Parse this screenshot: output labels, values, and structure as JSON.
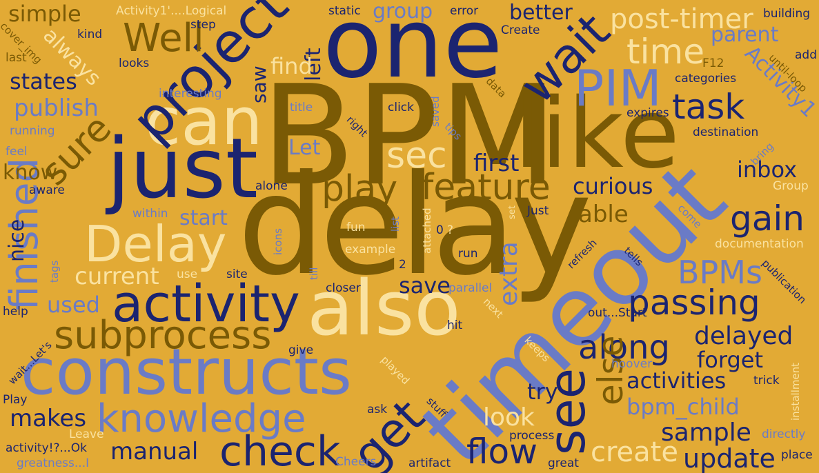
{
  "palette": {
    "background": "#e2aa35",
    "gold": "#7a5a05",
    "navy": "#1b2470",
    "blue": "#6a7bc6",
    "cream": "#fae2a0"
  },
  "words": [
    {
      "text": "BPM",
      "color": "gold"
    },
    {
      "text": "delay",
      "color": "gold"
    },
    {
      "text": "one",
      "color": "navy"
    },
    {
      "text": "timeout",
      "color": "blue"
    },
    {
      "text": "like",
      "color": "gold"
    },
    {
      "text": "just",
      "color": "navy"
    },
    {
      "text": "also",
      "color": "cream"
    },
    {
      "text": "constructs",
      "color": "blue"
    },
    {
      "text": "can",
      "color": "cream"
    },
    {
      "text": "project",
      "color": "navy"
    },
    {
      "text": "activity",
      "color": "navy"
    },
    {
      "text": "Delay",
      "color": "cream"
    },
    {
      "text": "subprocess",
      "color": "gold"
    },
    {
      "text": "knowledge",
      "color": "blue"
    },
    {
      "text": "check",
      "color": "navy"
    },
    {
      "text": "get",
      "color": "navy"
    },
    {
      "text": "see",
      "color": "navy"
    },
    {
      "text": "wait",
      "color": "navy"
    },
    {
      "text": "PIM",
      "color": "blue"
    },
    {
      "text": "feature",
      "color": "gold"
    },
    {
      "text": "play",
      "color": "gold"
    },
    {
      "text": "sec",
      "color": "cream"
    },
    {
      "text": "Well",
      "color": "gold"
    },
    {
      "text": "sure",
      "color": "gold"
    },
    {
      "text": "finished",
      "color": "blue"
    },
    {
      "text": "task",
      "color": "navy"
    },
    {
      "text": "time",
      "color": "cream"
    },
    {
      "text": "post-timer",
      "color": "cream"
    },
    {
      "text": "passing",
      "color": "navy"
    },
    {
      "text": "along",
      "color": "navy"
    },
    {
      "text": "else",
      "color": "gold"
    },
    {
      "text": "BPMs",
      "color": "blue"
    },
    {
      "text": "gain",
      "color": "navy"
    },
    {
      "text": "flow",
      "color": "navy"
    },
    {
      "text": "create",
      "color": "cream"
    },
    {
      "text": "update",
      "color": "navy"
    },
    {
      "text": "sample",
      "color": "navy"
    },
    {
      "text": "activities",
      "color": "navy"
    },
    {
      "text": "delayed",
      "color": "navy"
    },
    {
      "text": "forget",
      "color": "navy"
    },
    {
      "text": "bpm_child",
      "color": "blue"
    },
    {
      "text": "curious",
      "color": "navy"
    },
    {
      "text": "first",
      "color": "navy"
    },
    {
      "text": "inbox",
      "color": "navy"
    },
    {
      "text": "parent",
      "color": "blue"
    },
    {
      "text": "Activity1",
      "color": "blue"
    },
    {
      "text": "look",
      "color": "cream"
    },
    {
      "text": "try",
      "color": "navy"
    },
    {
      "text": "save",
      "color": "navy"
    },
    {
      "text": "extra",
      "color": "blue"
    },
    {
      "text": "able",
      "color": "gold"
    },
    {
      "text": "current",
      "color": "cream"
    },
    {
      "text": "makes",
      "color": "navy"
    },
    {
      "text": "manual",
      "color": "navy"
    },
    {
      "text": "used",
      "color": "blue"
    },
    {
      "text": "start",
      "color": "blue"
    },
    {
      "text": "know",
      "color": "gold"
    },
    {
      "text": "publish",
      "color": "blue"
    },
    {
      "text": "states",
      "color": "navy"
    },
    {
      "text": "simple",
      "color": "gold"
    },
    {
      "text": "always",
      "color": "cream"
    },
    {
      "text": "group",
      "color": "blue"
    },
    {
      "text": "left",
      "color": "navy"
    },
    {
      "text": "saw",
      "color": "navy"
    },
    {
      "text": "find",
      "color": "cream"
    },
    {
      "text": "Let",
      "color": "blue"
    },
    {
      "text": "better",
      "color": "navy"
    },
    {
      "text": "nice",
      "color": "navy"
    },
    {
      "text": "Activity1'....Logical",
      "color": "cream"
    },
    {
      "text": "static",
      "color": "navy"
    },
    {
      "text": "error",
      "color": "navy"
    },
    {
      "text": "building",
      "color": "navy"
    },
    {
      "text": "step",
      "color": "navy"
    },
    {
      "text": "kind",
      "color": "navy"
    },
    {
      "text": "cover_img",
      "color": "gold"
    },
    {
      "text": "last",
      "color": "gold"
    },
    {
      "text": "looks",
      "color": "navy"
    },
    {
      "text": "Create",
      "color": "navy"
    },
    {
      "text": "add",
      "color": "navy"
    },
    {
      "text": "until-loop",
      "color": "gold"
    },
    {
      "text": "F12",
      "color": "gold"
    },
    {
      "text": "categories",
      "color": "navy"
    },
    {
      "text": "data",
      "color": "gold"
    },
    {
      "text": "interesting",
      "color": "blue"
    },
    {
      "text": "title",
      "color": "blue"
    },
    {
      "text": "click",
      "color": "navy"
    },
    {
      "text": "saved",
      "color": "blue"
    },
    {
      "text": "tips",
      "color": "blue"
    },
    {
      "text": "expires",
      "color": "navy"
    },
    {
      "text": "right",
      "color": "navy"
    },
    {
      "text": "running",
      "color": "blue"
    },
    {
      "text": "feel",
      "color": "blue"
    },
    {
      "text": "destination",
      "color": "navy"
    },
    {
      "text": "bring",
      "color": "blue"
    },
    {
      "text": "Group",
      "color": "cream"
    },
    {
      "text": "aware",
      "color": "navy"
    },
    {
      "text": "alone",
      "color": "navy"
    },
    {
      "text": "within",
      "color": "blue"
    },
    {
      "text": "attached",
      "color": "cream"
    },
    {
      "text": "fun",
      "color": "cream"
    },
    {
      "text": "list",
      "color": "blue"
    },
    {
      "text": "icons",
      "color": "blue"
    },
    {
      "text": "Just",
      "color": "navy"
    },
    {
      "text": "set",
      "color": "cream"
    },
    {
      "text": "come",
      "color": "blue"
    },
    {
      "text": "0",
      "color": "navy"
    },
    {
      "text": "?",
      "color": "cream"
    },
    {
      "text": "example",
      "color": "cream"
    },
    {
      "text": "run",
      "color": "navy"
    },
    {
      "text": "2",
      "color": "navy"
    },
    {
      "text": "refresh",
      "color": "navy"
    },
    {
      "text": "tells",
      "color": "navy"
    },
    {
      "text": "documentation",
      "color": "cream"
    },
    {
      "text": "publication",
      "color": "navy"
    },
    {
      "text": "site",
      "color": "navy"
    },
    {
      "text": "use",
      "color": "cream"
    },
    {
      "text": "tags",
      "color": "blue"
    },
    {
      "text": "till",
      "color": "blue"
    },
    {
      "text": "closer",
      "color": "navy"
    },
    {
      "text": "parallel",
      "color": "blue"
    },
    {
      "text": "next",
      "color": "cream"
    },
    {
      "text": "help",
      "color": "navy"
    },
    {
      "text": "wait...Let's",
      "color": "navy"
    },
    {
      "text": "give",
      "color": "navy"
    },
    {
      "text": "hit",
      "color": "navy"
    },
    {
      "text": "out...Start",
      "color": "navy"
    },
    {
      "text": "keeps",
      "color": "cream"
    },
    {
      "text": "hoover",
      "color": "blue"
    },
    {
      "text": "installment",
      "color": "cream"
    },
    {
      "text": "trick",
      "color": "navy"
    },
    {
      "text": "played",
      "color": "cream"
    },
    {
      "text": "Play",
      "color": "navy"
    },
    {
      "text": "ask",
      "color": "navy"
    },
    {
      "text": "stuff",
      "color": "navy"
    },
    {
      "text": "Leave",
      "color": "cream"
    },
    {
      "text": "process",
      "color": "navy"
    },
    {
      "text": "directly",
      "color": "blue"
    },
    {
      "text": "activity!?...Ok",
      "color": "navy"
    },
    {
      "text": "greatness...I",
      "color": "blue"
    },
    {
      "text": "Cheers",
      "color": "blue"
    },
    {
      "text": "artifact",
      "color": "navy"
    },
    {
      "text": "great",
      "color": "navy"
    },
    {
      "text": "place",
      "color": "navy"
    }
  ]
}
